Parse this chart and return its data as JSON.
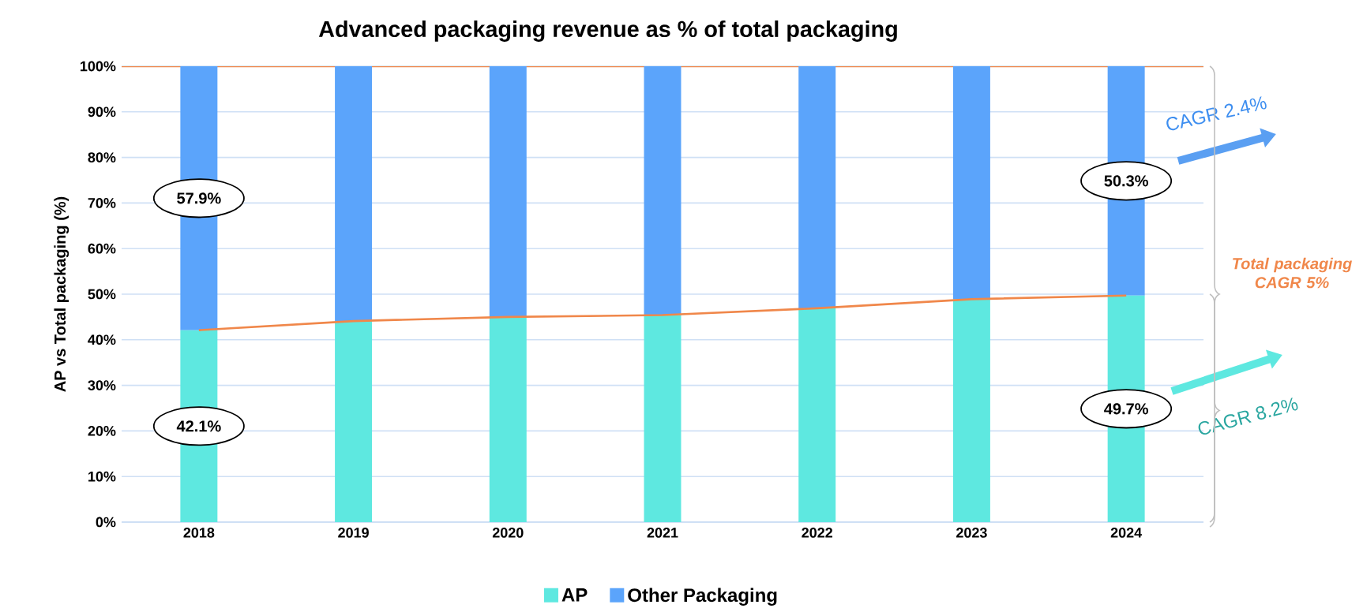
{
  "chart_data": {
    "type": "bar",
    "title": "Advanced packaging revenue as % of total packaging",
    "ylabel": "AP vs Total packaging (%)",
    "categories": [
      "2018",
      "2019",
      "2020",
      "2021",
      "2022",
      "2023",
      "2024"
    ],
    "series": [
      {
        "name": "AP",
        "type": "bar",
        "color": "#5ee8e0",
        "values": [
          42.1,
          44.1,
          45.0,
          45.4,
          46.9,
          48.9,
          49.7
        ],
        "value_labels": [
          "42.1%",
          null,
          null,
          null,
          null,
          null,
          "49.7%"
        ]
      },
      {
        "name": "Other Packaging",
        "type": "bar",
        "color": "#5ba4fb",
        "values": [
          57.9,
          55.9,
          55.0,
          54.6,
          53.1,
          51.1,
          50.3
        ],
        "value_labels": [
          "57.9%",
          null,
          null,
          null,
          null,
          null,
          "50.3%"
        ]
      },
      {
        "type": "line",
        "color": "#f0874a",
        "values": [
          42.1,
          44.1,
          45.0,
          45.4,
          46.9,
          48.9,
          49.7
        ]
      }
    ],
    "stacked": true,
    "marker": "none",
    "grid": "y",
    "legend": "bottom",
    "ylim": [
      0,
      100
    ],
    "yticks": [
      {
        "value": 0,
        "label": "0%"
      },
      {
        "value": 10,
        "label": "10%"
      },
      {
        "value": 20,
        "label": "20%"
      },
      {
        "value": 30,
        "label": "30%"
      },
      {
        "value": 40,
        "label": "40%"
      },
      {
        "value": 50,
        "label": "50%"
      },
      {
        "value": 60,
        "label": "60%"
      },
      {
        "value": 70,
        "label": "70%"
      },
      {
        "value": 80,
        "label": "80%"
      },
      {
        "value": 90,
        "label": "90%"
      },
      {
        "value": 100,
        "label": "100%"
      }
    ],
    "ref_lines": [
      {
        "axis": "y",
        "value": 100,
        "color": "#f0874a"
      }
    ],
    "annotations": [
      "CAGR 2.4%",
      "Total packaging CAGR 5%",
      "CAGR 8.2%"
    ]
  }
}
